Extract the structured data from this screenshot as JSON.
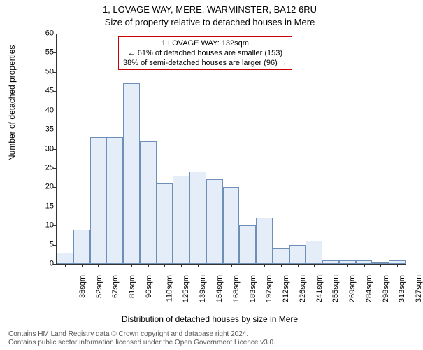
{
  "title_main": "1, LOVAGE WAY, MERE, WARMINSTER, BA12 6RU",
  "title_sub": "Size of property relative to detached houses in Mere",
  "y_axis_label": "Number of detached properties",
  "x_axis_label": "Distribution of detached houses by size in Mere",
  "chart": {
    "type": "histogram",
    "ylim": [
      0,
      60
    ],
    "ytick_step": 5,
    "bar_fill": "#e4edf8",
    "bar_border": "#6d8fb8",
    "bar_border_width": 1,
    "background_color": "#ffffff",
    "axis_color": "#333333",
    "ref_line_color": "#cc0000",
    "ref_line_position": 132,
    "x_tick_labels": [
      "38sqm",
      "52sqm",
      "67sqm",
      "81sqm",
      "96sqm",
      "110sqm",
      "125sqm",
      "139sqm",
      "154sqm",
      "168sqm",
      "183sqm",
      "197sqm",
      "212sqm",
      "226sqm",
      "241sqm",
      "255sqm",
      "269sqm",
      "284sqm",
      "298sqm",
      "313sqm",
      "327sqm"
    ],
    "values": [
      3,
      9,
      33,
      33,
      47,
      32,
      21,
      23,
      24,
      22,
      20,
      10,
      12,
      4,
      5,
      6,
      1,
      1,
      1,
      0,
      1
    ],
    "title_fontsize": 13,
    "label_fontsize": 12,
    "tick_fontsize": 11
  },
  "info_box": {
    "line1": "1 LOVAGE WAY: 132sqm",
    "line2": "← 61% of detached houses are smaller (153)",
    "line3": "38% of semi-detached houses are larger (96) →",
    "border_color": "#cc0000",
    "background_color": "#ffffff",
    "fontsize": 11
  },
  "footer": {
    "line1": "Contains HM Land Registry data © Crown copyright and database right 2024.",
    "line2": "Contains public sector information licensed under the Open Government Licence v3.0.",
    "color": "#555555",
    "fontsize": 10
  }
}
